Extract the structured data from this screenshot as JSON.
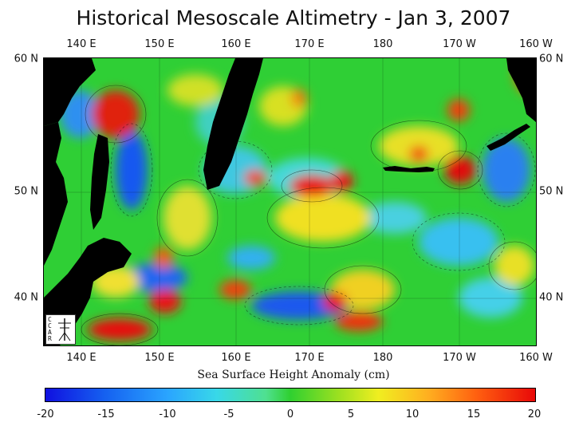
{
  "title": "Historical Mesoscale Altimetry - Jan 3, 2007",
  "x_axis_label": "Sea Surface Height Anomaly (cm)",
  "longitude_ticks_top": [
    "140 E",
    "150 E",
    "160 E",
    "170 E",
    "180",
    "170 W",
    "160 W"
  ],
  "longitude_ticks_bottom": [
    "140 E",
    "150 E",
    "160 E",
    "170 E",
    "180",
    "170 W",
    "160 W"
  ],
  "latitude_ticks_left": [
    "60 N",
    "50 N",
    "40 N"
  ],
  "latitude_ticks_right": [
    "60 N",
    "50 N",
    "40 N"
  ],
  "colorbar_ticks": [
    "-20",
    "-15",
    "-10",
    "-5",
    "0",
    "5",
    "10",
    "15",
    "20"
  ],
  "colorbar_range": [
    -20,
    20
  ],
  "colors": {
    "land": "#000000",
    "negative_max": "#1010e0",
    "zero": "#2fd030",
    "positive_max": "#e80808"
  },
  "logo_letters": [
    "C",
    "C",
    "A",
    "R"
  ]
}
